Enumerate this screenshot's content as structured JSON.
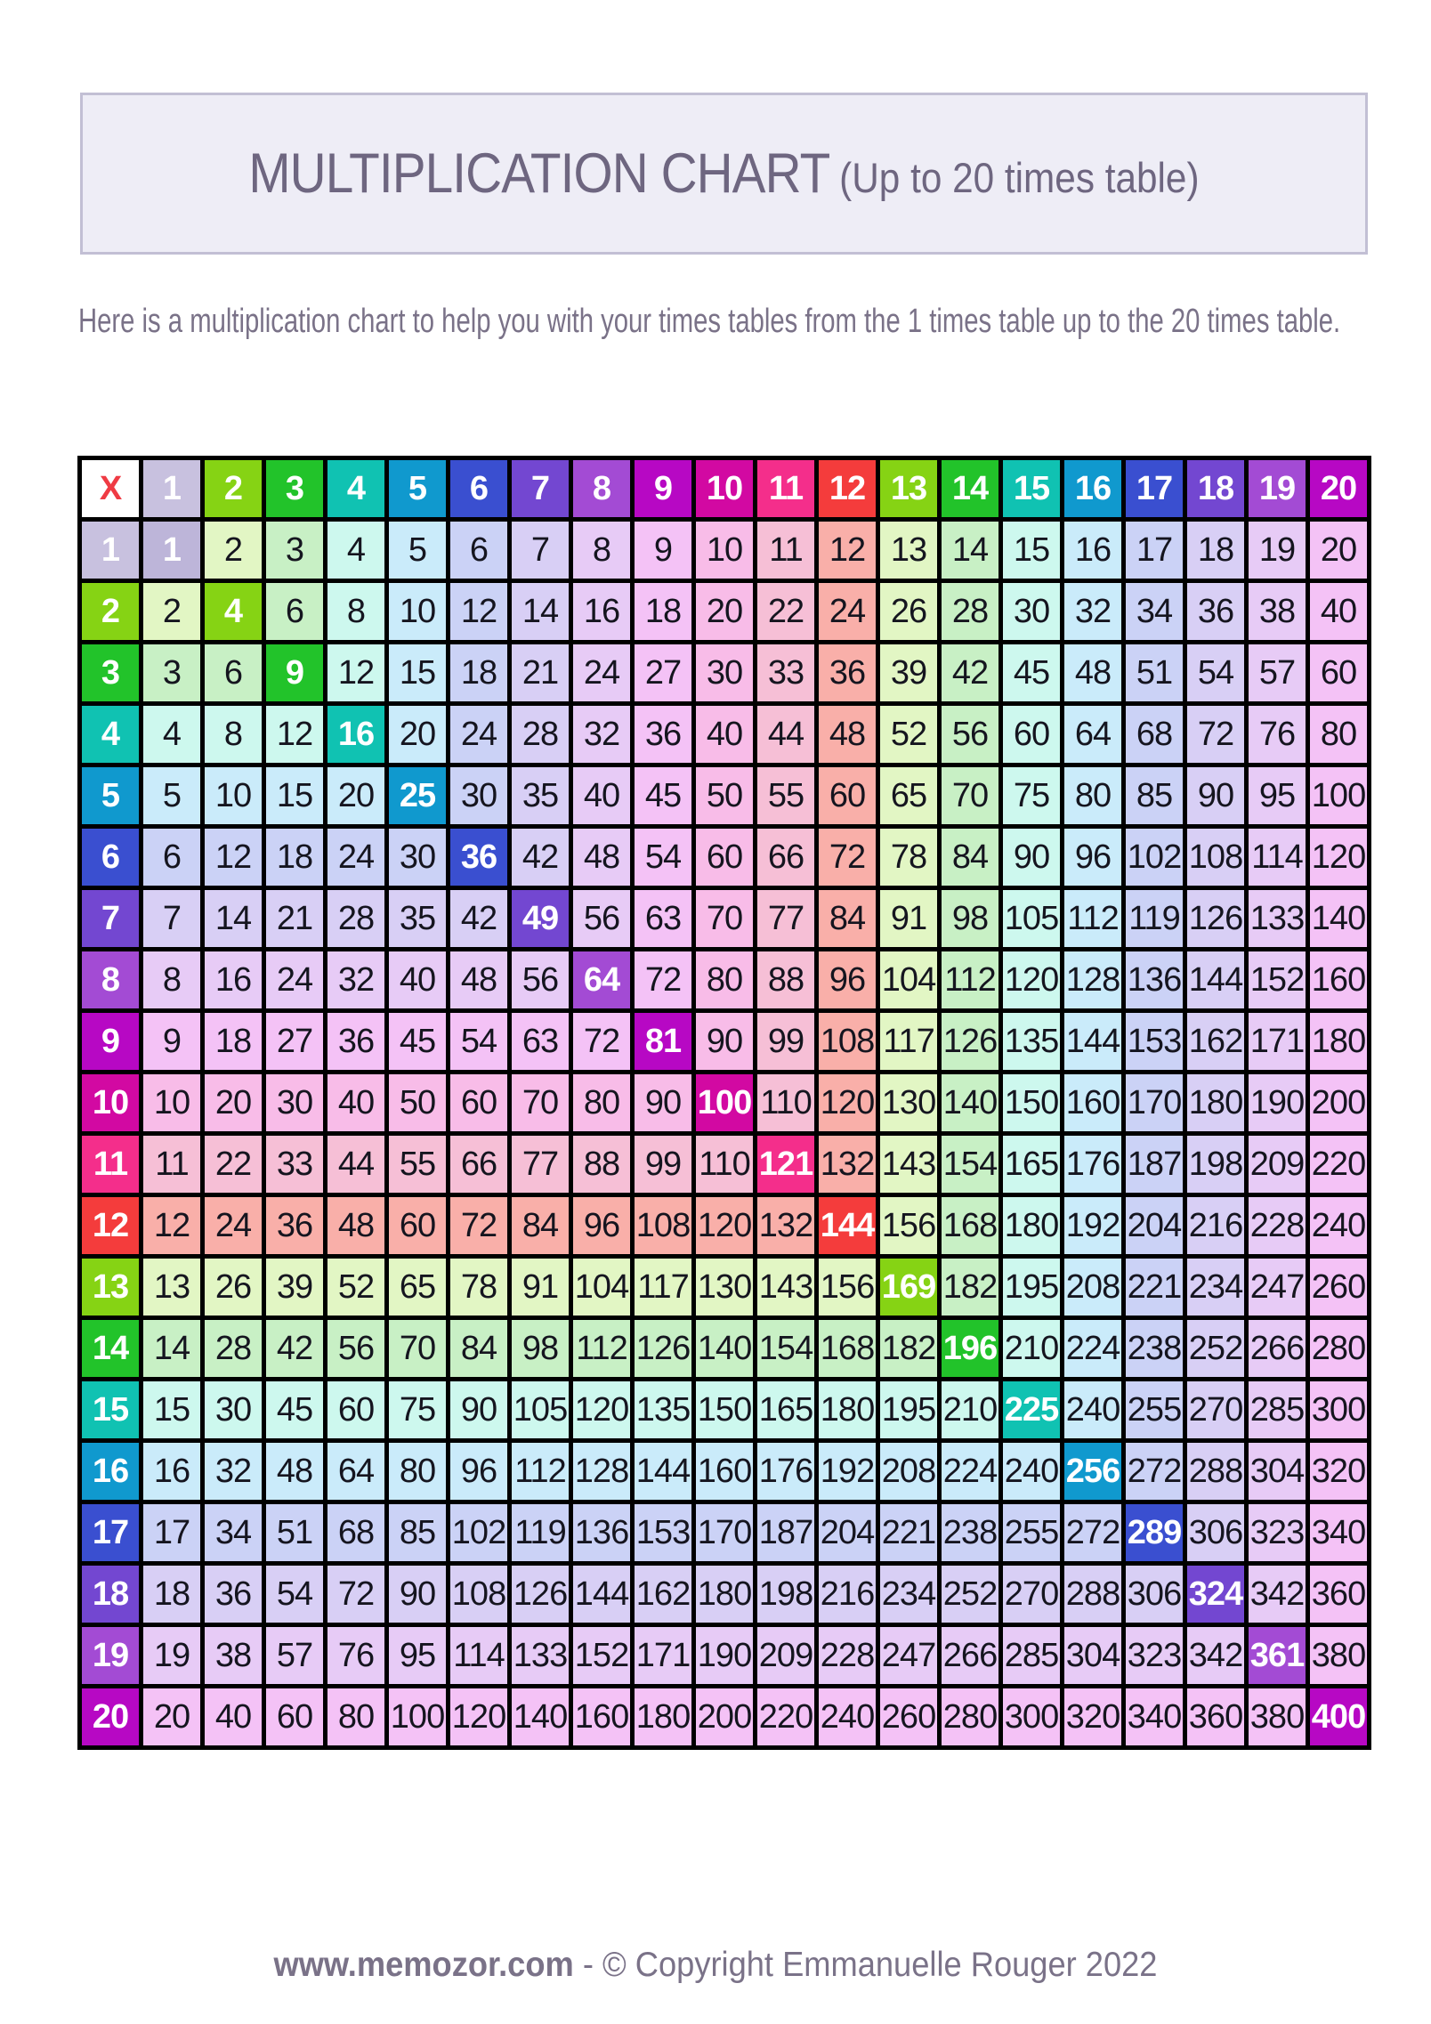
{
  "header": {
    "title": "MULTIPLICATION CHART",
    "subtitle": "(Up to 20 times table)",
    "box_bg": "#EEEDF6",
    "box_border": "#C2BFD4",
    "text_color": "#6E6680"
  },
  "intro": {
    "text": "Here is a multiplication chart to help you with your times tables from the 1 times table up to the 20 times table.",
    "color": "#7A7288"
  },
  "footer": {
    "site": "www.memozor.com",
    "rest": " - © Copyright Emmanuelle Rouger 2022",
    "color": "#7A7288"
  },
  "chart_data": {
    "type": "table",
    "title": "Multiplication chart from 1 to 20 times table",
    "corner_label": "X",
    "corner_label_color": "#EF3B44",
    "grid_color": "#000000",
    "header_text_color": "#FFFFFF",
    "cell_text_color": "#15151F",
    "diagonal_rule": "square cells n×n are filled with the full row color and show white bold text; all other cells use the pastel tint of max(row,col)",
    "column_headers": [
      1,
      2,
      3,
      4,
      5,
      6,
      7,
      8,
      9,
      10,
      11,
      12,
      13,
      14,
      15,
      16,
      17,
      18,
      19,
      20
    ],
    "row_headers": [
      1,
      2,
      3,
      4,
      5,
      6,
      7,
      8,
      9,
      10,
      11,
      12,
      13,
      14,
      15,
      16,
      17,
      18,
      19,
      20
    ],
    "palette_full": [
      "#C8C1DF",
      "#86D314",
      "#22C32A",
      "#10C2B2",
      "#1099CE",
      "#3A4FD0",
      "#7347D1",
      "#A34BD4",
      "#B708C4",
      "#D209A2",
      "#F42E8B",
      "#F43C3C",
      "#86D314",
      "#22C32A",
      "#10C2B2",
      "#1099CE",
      "#3A4FD0",
      "#7347D1",
      "#A34BD4",
      "#B708C4"
    ],
    "palette_tint": [
      "#BDB5D9",
      "#E2F6C4",
      "#C8F0C5",
      "#CDF8EE",
      "#CAEBFA",
      "#CBD2F6",
      "#D8CFF5",
      "#E7CBF6",
      "#F4C2F6",
      "#F8BCE8",
      "#F6BFD6",
      "#F9AFA9",
      "#E2F6C4",
      "#C8F0C5",
      "#CDF8EE",
      "#CAEBFA",
      "#CBD2F6",
      "#D8CFF5",
      "#E7CBF6",
      "#F4C2F6"
    ],
    "values": [
      [
        1,
        2,
        3,
        4,
        5,
        6,
        7,
        8,
        9,
        10,
        11,
        12,
        13,
        14,
        15,
        16,
        17,
        18,
        19,
        20
      ],
      [
        2,
        4,
        6,
        8,
        10,
        12,
        14,
        16,
        18,
        20,
        22,
        24,
        26,
        28,
        30,
        32,
        34,
        36,
        38,
        40
      ],
      [
        3,
        6,
        9,
        12,
        15,
        18,
        21,
        24,
        27,
        30,
        33,
        36,
        39,
        42,
        45,
        48,
        51,
        54,
        57,
        60
      ],
      [
        4,
        8,
        12,
        16,
        20,
        24,
        28,
        32,
        36,
        40,
        44,
        48,
        52,
        56,
        60,
        64,
        68,
        72,
        76,
        80
      ],
      [
        5,
        10,
        15,
        20,
        25,
        30,
        35,
        40,
        45,
        50,
        55,
        60,
        65,
        70,
        75,
        80,
        85,
        90,
        95,
        100
      ],
      [
        6,
        12,
        18,
        24,
        30,
        36,
        42,
        48,
        54,
        60,
        66,
        72,
        78,
        84,
        90,
        96,
        102,
        108,
        114,
        120
      ],
      [
        7,
        14,
        21,
        28,
        35,
        42,
        49,
        56,
        63,
        70,
        77,
        84,
        91,
        98,
        105,
        112,
        119,
        126,
        133,
        140
      ],
      [
        8,
        16,
        24,
        32,
        40,
        48,
        56,
        64,
        72,
        80,
        88,
        96,
        104,
        112,
        120,
        128,
        136,
        144,
        152,
        160
      ],
      [
        9,
        18,
        27,
        36,
        45,
        54,
        63,
        72,
        81,
        90,
        99,
        108,
        117,
        126,
        135,
        144,
        153,
        162,
        171,
        180
      ],
      [
        10,
        20,
        30,
        40,
        50,
        60,
        70,
        80,
        90,
        100,
        110,
        120,
        130,
        140,
        150,
        160,
        170,
        180,
        190,
        200
      ],
      [
        11,
        22,
        33,
        44,
        55,
        66,
        77,
        88,
        99,
        110,
        121,
        132,
        143,
        154,
        165,
        176,
        187,
        198,
        209,
        220
      ],
      [
        12,
        24,
        36,
        48,
        60,
        72,
        84,
        96,
        108,
        120,
        132,
        144,
        156,
        168,
        180,
        192,
        204,
        216,
        228,
        240
      ],
      [
        13,
        26,
        39,
        52,
        65,
        78,
        91,
        104,
        117,
        130,
        143,
        156,
        169,
        182,
        195,
        208,
        221,
        234,
        247,
        260
      ],
      [
        14,
        28,
        42,
        56,
        70,
        84,
        98,
        112,
        126,
        140,
        154,
        168,
        182,
        196,
        210,
        224,
        238,
        252,
        266,
        280
      ],
      [
        15,
        30,
        45,
        60,
        75,
        90,
        105,
        120,
        135,
        150,
        165,
        180,
        195,
        210,
        225,
        240,
        255,
        270,
        285,
        300
      ],
      [
        16,
        32,
        48,
        64,
        80,
        96,
        112,
        128,
        144,
        160,
        176,
        192,
        208,
        224,
        240,
        256,
        272,
        288,
        304,
        320
      ],
      [
        17,
        34,
        51,
        68,
        85,
        102,
        119,
        136,
        153,
        170,
        187,
        204,
        221,
        238,
        255,
        272,
        289,
        306,
        323,
        340
      ],
      [
        18,
        36,
        54,
        72,
        90,
        108,
        126,
        144,
        162,
        180,
        198,
        216,
        234,
        252,
        270,
        288,
        306,
        324,
        342,
        360
      ],
      [
        19,
        38,
        57,
        76,
        95,
        114,
        133,
        152,
        171,
        190,
        209,
        228,
        247,
        266,
        285,
        304,
        323,
        342,
        361,
        380
      ],
      [
        20,
        40,
        60,
        80,
        100,
        120,
        140,
        160,
        180,
        200,
        220,
        240,
        260,
        280,
        300,
        320,
        340,
        360,
        380,
        400
      ]
    ]
  }
}
